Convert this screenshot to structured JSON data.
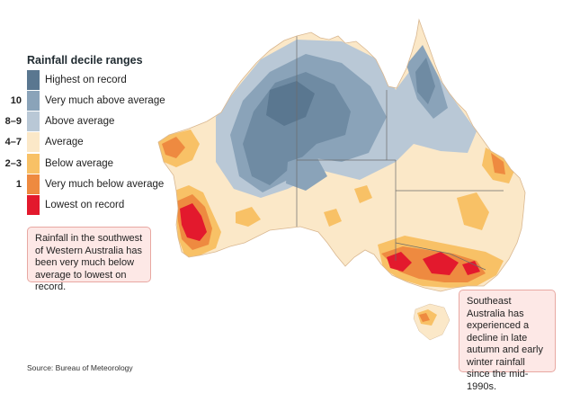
{
  "legend": {
    "title": "Rainfall decile ranges",
    "items": [
      {
        "code": "",
        "label": "Highest on record",
        "color": "#5a7790"
      },
      {
        "code": "10",
        "label": "Very much above average",
        "color": "#8aa3b9"
      },
      {
        "code": "8–9",
        "label": "Above average",
        "color": "#b9c8d6"
      },
      {
        "code": "4–7",
        "label": "Average",
        "color": "#fbe8c8"
      },
      {
        "code": "2–3",
        "label": "Below average",
        "color": "#f8c166"
      },
      {
        "code": "1",
        "label": "Very much below average",
        "color": "#ee8a40"
      },
      {
        "code": "",
        "label": "Lowest on record",
        "color": "#e3192d"
      }
    ]
  },
  "callouts": {
    "southwest": "Rainfall in the southwest of Western Australia has been very much below average to lowest on record.",
    "southeast": "Southeast Australia has experienced a decline in late autumn and early winter rainfall since the mid-1990s."
  },
  "source": "Source: Bureau of Meteorology",
  "colors": {
    "border_line": "#6b6b6b",
    "callout_bg": "#fde8e6",
    "callout_border": "#e8a8a2"
  }
}
